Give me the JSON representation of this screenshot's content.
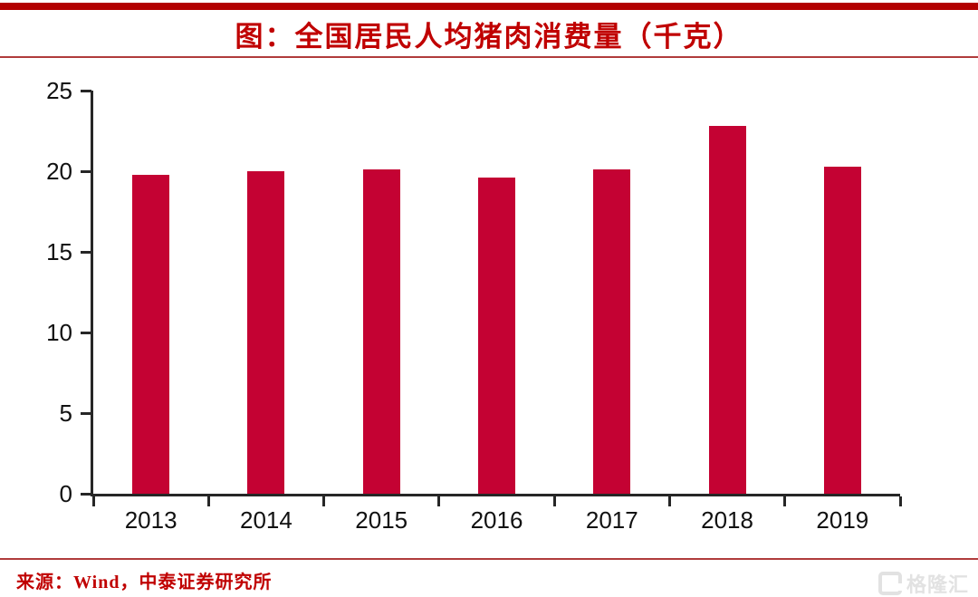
{
  "header": {
    "title": "图：全国居民人均猪肉消费量（千克）"
  },
  "footer": {
    "source": "来源：Wind，中泰证券研究所",
    "watermark_icon": "gelonghui-logo",
    "watermark_text": "格隆汇"
  },
  "colors": {
    "accent_red": "#C00000",
    "band_red": "#B30000",
    "bar_red": "#C40233",
    "divider_red": "#B03C3C",
    "axis_black": "#262626",
    "watermark_gray": "#E2E2E2"
  },
  "chart_data": {
    "type": "bar",
    "title": "图：全国居民人均猪肉消费量（千克）",
    "categories": [
      "2013",
      "2014",
      "2015",
      "2016",
      "2017",
      "2018",
      "2019"
    ],
    "values": [
      19.8,
      20.0,
      20.1,
      19.6,
      20.1,
      22.8,
      20.3
    ],
    "xlabel": "",
    "ylabel": "",
    "ylim": [
      0,
      25
    ],
    "yticks": [
      0,
      5,
      10,
      15,
      20,
      25
    ],
    "grid": false,
    "legend": null,
    "bar_color": "#C40233"
  }
}
